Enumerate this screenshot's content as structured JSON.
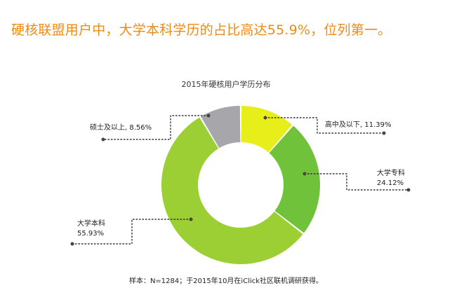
{
  "headline": "硬核联盟用户中，大学本科学历的占比高达55.9%，位列第一。",
  "source_note": "样本：N=1284；于2015年10月在iClick社区联机调研获得。",
  "chart_data": {
    "type": "pie",
    "donut": true,
    "title": "2015年硬核用户学历分布",
    "slices": [
      {
        "label": "高中及以下",
        "value": 11.39,
        "value_text": "11.39%",
        "color": "#e8ee1a"
      },
      {
        "label": "大学专科",
        "value": 24.12,
        "value_text": "24.12%",
        "color": "#6fc23a"
      },
      {
        "label": "大学本科",
        "value": 55.93,
        "value_text": "55.93%",
        "color": "#9ccf34"
      },
      {
        "label": "硕士及以上",
        "value": 8.56,
        "value_text": "8.56%",
        "color": "#a6a6ab"
      }
    ]
  },
  "labels": {
    "high_school": "高中及以下, 11.39%",
    "college_name": "大学专科",
    "college_value": "24.12%",
    "bachelor_name": "大学本科",
    "bachelor_value": "55.93%",
    "master": "硕士及以上, 8.56%"
  }
}
